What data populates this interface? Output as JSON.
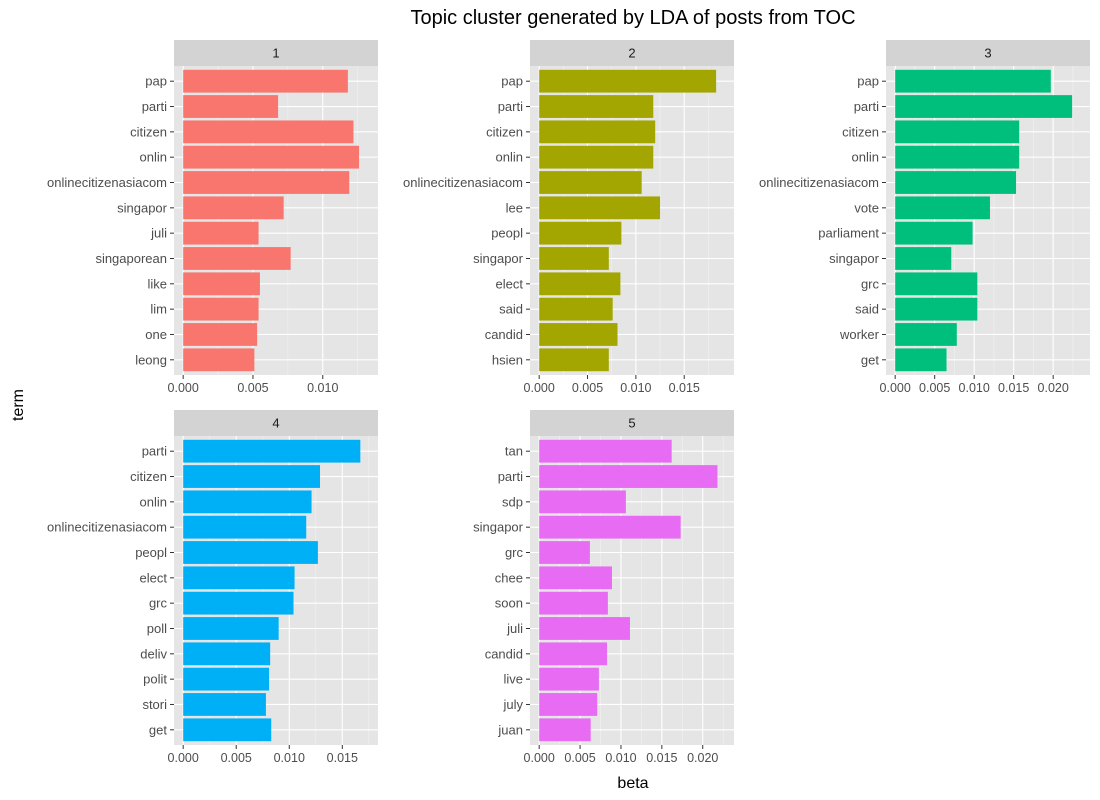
{
  "chart_data": {
    "type": "bar",
    "orientation": "horizontal",
    "title": "Topic cluster generated by LDA of posts from TOC",
    "xlabel": "beta",
    "ylabel": "term",
    "panels": [
      {
        "name": "1",
        "color": "#F8766D",
        "xlim": [
          0,
          0.0133
        ],
        "xticks": [
          0,
          0.005,
          0.01
        ],
        "x_tick_labels": [
          "0.000",
          "0.005",
          "0.010"
        ],
        "categories": [
          "pap",
          "parti",
          "citizen",
          "onlin",
          "onlinecitizenasiacom",
          "singapor",
          "juli",
          "singaporean",
          "like",
          "lim",
          "one",
          "leong"
        ],
        "values": [
          0.0118,
          0.0068,
          0.0122,
          0.0126,
          0.0119,
          0.0072,
          0.0054,
          0.0077,
          0.0055,
          0.0054,
          0.0053,
          0.0051
        ]
      },
      {
        "name": "2",
        "color": "#A3A500",
        "xlim": [
          0,
          0.0192
        ],
        "xticks": [
          0,
          0.005,
          0.01,
          0.015
        ],
        "x_tick_labels": [
          "0.000",
          "0.005",
          "0.010",
          "0.015"
        ],
        "categories": [
          "pap",
          "parti",
          "citizen",
          "onlin",
          "onlinecitizenasiacom",
          "lee",
          "peopl",
          "singapor",
          "elect",
          "said",
          "candid",
          "hsien"
        ],
        "values": [
          0.0183,
          0.0118,
          0.012,
          0.0118,
          0.0106,
          0.0125,
          0.0085,
          0.0072,
          0.0084,
          0.0076,
          0.0081,
          0.0072
        ]
      },
      {
        "name": "3",
        "color": "#00BF7D",
        "xlim": [
          0,
          0.0235
        ],
        "xticks": [
          0,
          0.005,
          0.01,
          0.015,
          0.02
        ],
        "x_tick_labels": [
          "0.000",
          "0.005",
          "0.010",
          "0.015",
          "0.020"
        ],
        "categories": [
          "pap",
          "parti",
          "citizen",
          "onlin",
          "onlinecitizenasiacom",
          "vote",
          "parliament",
          "singapor",
          "grc",
          "said",
          "worker",
          "get"
        ],
        "values": [
          0.0197,
          0.0224,
          0.0157,
          0.0157,
          0.0153,
          0.012,
          0.0098,
          0.0071,
          0.0104,
          0.0104,
          0.0078,
          0.0065
        ]
      },
      {
        "name": "4",
        "color": "#00B0F6",
        "xlim": [
          0,
          0.0175
        ],
        "xticks": [
          0,
          0.005,
          0.01,
          0.015
        ],
        "x_tick_labels": [
          "0.000",
          "0.005",
          "0.010",
          "0.015"
        ],
        "categories": [
          "parti",
          "citizen",
          "onlin",
          "onlinecitizenasiacom",
          "peopl",
          "elect",
          "grc",
          "poll",
          "deliv",
          "polit",
          "stori",
          "get"
        ],
        "values": [
          0.0167,
          0.0129,
          0.0121,
          0.0116,
          0.0127,
          0.0105,
          0.0104,
          0.009,
          0.0082,
          0.0081,
          0.0078,
          0.0083
        ]
      },
      {
        "name": "5",
        "color": "#E76BF3",
        "xlim": [
          0,
          0.0227
        ],
        "xticks": [
          0,
          0.005,
          0.01,
          0.015,
          0.02
        ],
        "x_tick_labels": [
          "0.000",
          "0.005",
          "0.010",
          "0.015",
          "0.020"
        ],
        "categories": [
          "tan",
          "parti",
          "sdp",
          "singapor",
          "grc",
          "chee",
          "soon",
          "juli",
          "candid",
          "live",
          "july",
          "juan"
        ],
        "values": [
          0.0162,
          0.0218,
          0.0106,
          0.0173,
          0.0062,
          0.0089,
          0.0084,
          0.0111,
          0.0083,
          0.0073,
          0.0071,
          0.0063
        ]
      }
    ]
  }
}
